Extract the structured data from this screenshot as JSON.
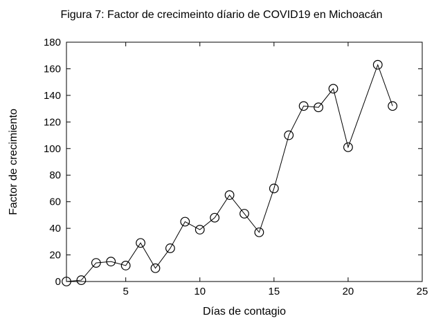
{
  "chart_data": {
    "type": "line",
    "title": "Figura 7: Factor de crecimeinto díario de COVID19 en Michoacán",
    "xlabel": "Días de contagio",
    "ylabel": "Factor de crecimiento",
    "x": [
      1,
      2,
      3,
      4,
      5,
      6,
      7,
      8,
      9,
      10,
      11,
      12,
      13,
      14,
      15,
      16,
      17,
      18,
      19,
      20,
      22,
      23
    ],
    "y": [
      0,
      1,
      14,
      15,
      12,
      29,
      10,
      25,
      45,
      39,
      48,
      65,
      51,
      37,
      70,
      110,
      132,
      131,
      145,
      101,
      163,
      132
    ],
    "xlim": [
      1,
      25
    ],
    "ylim": [
      0,
      180
    ],
    "xticks": [
      5,
      10,
      15,
      20,
      25
    ],
    "yticks": [
      0,
      20,
      40,
      60,
      80,
      100,
      120,
      140,
      160,
      180
    ],
    "grid": false,
    "legend": null,
    "marker": "open-circle",
    "line_color": "#000000",
    "marker_color": "#000000",
    "axis_color": "#000000",
    "background_color": "#ffffff"
  }
}
